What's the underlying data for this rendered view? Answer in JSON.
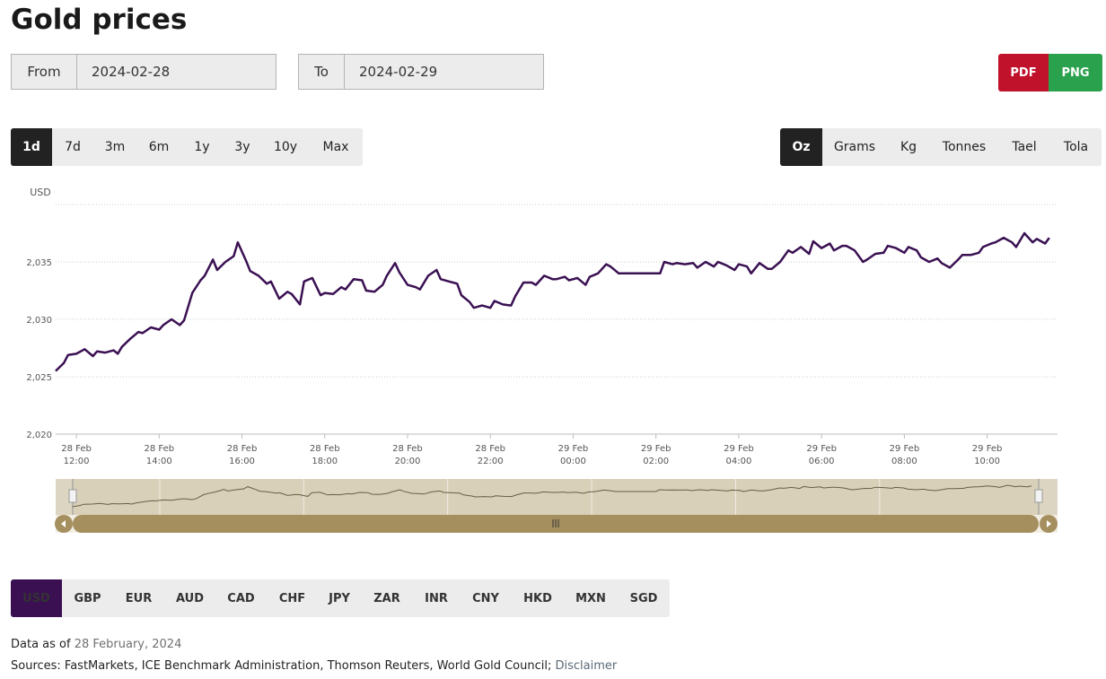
{
  "page": {
    "title": "Gold prices"
  },
  "date_range": {
    "from_label": "From",
    "from_value": "2024-02-28",
    "to_label": "To",
    "to_value": "2024-02-29"
  },
  "export": {
    "pdf_label": "PDF",
    "png_label": "PNG",
    "pdf_color": "#c0122b",
    "png_color": "#2aa14c"
  },
  "periods": [
    {
      "label": "1d",
      "active": true
    },
    {
      "label": "7d"
    },
    {
      "label": "3m"
    },
    {
      "label": "6m"
    },
    {
      "label": "1y"
    },
    {
      "label": "3y"
    },
    {
      "label": "10y"
    },
    {
      "label": "Max"
    }
  ],
  "units": [
    {
      "label": "Oz",
      "active": true
    },
    {
      "label": "Grams"
    },
    {
      "label": "Kg"
    },
    {
      "label": "Tonnes"
    },
    {
      "label": "Tael"
    },
    {
      "label": "Tola"
    }
  ],
  "currencies": [
    {
      "label": "USD",
      "active": true
    },
    {
      "label": "GBP"
    },
    {
      "label": "EUR"
    },
    {
      "label": "AUD"
    },
    {
      "label": "CAD"
    },
    {
      "label": "CHF"
    },
    {
      "label": "JPY"
    },
    {
      "label": "ZAR"
    },
    {
      "label": "INR"
    },
    {
      "label": "CNY"
    },
    {
      "label": "HKD"
    },
    {
      "label": "MXN"
    },
    {
      "label": "SGD"
    }
  ],
  "footer": {
    "asof_prefix": "Data as of ",
    "asof_date": "28 February, 2024",
    "sources": "Sources: FastMarkets, ICE Benchmark Administration, Thomson Reuters, World Gold Council; ",
    "disclaimer": "Disclaimer"
  },
  "chart_data": {
    "type": "line",
    "ylabel": "USD",
    "ylim": [
      2020,
      2040
    ],
    "yticks": [
      {
        "value": 2020,
        "label": "2,020"
      },
      {
        "value": 2025,
        "label": "2,025"
      },
      {
        "value": 2030,
        "label": "2,030"
      },
      {
        "value": 2035,
        "label": "2,035"
      }
    ],
    "xlim": [
      11.5,
      35.7
    ],
    "xticks": [
      {
        "t": 12,
        "l1": "28 Feb",
        "l2": "12:00"
      },
      {
        "t": 14,
        "l1": "28 Feb",
        "l2": "14:00"
      },
      {
        "t": 16,
        "l1": "28 Feb",
        "l2": "16:00"
      },
      {
        "t": 18,
        "l1": "28 Feb",
        "l2": "18:00"
      },
      {
        "t": 20,
        "l1": "28 Feb",
        "l2": "20:00"
      },
      {
        "t": 22,
        "l1": "28 Feb",
        "l2": "22:00"
      },
      {
        "t": 24,
        "l1": "29 Feb",
        "l2": "00:00"
      },
      {
        "t": 26,
        "l1": "29 Feb",
        "l2": "02:00"
      },
      {
        "t": 28,
        "l1": "29 Feb",
        "l2": "04:00"
      },
      {
        "t": 30,
        "l1": "29 Feb",
        "l2": "06:00"
      },
      {
        "t": 32,
        "l1": "29 Feb",
        "l2": "08:00"
      },
      {
        "t": 34,
        "l1": "29 Feb",
        "l2": "10:00"
      }
    ],
    "line_color": "#3a1052",
    "grid": true,
    "series": [
      {
        "points": [
          [
            11.5,
            2025.5
          ],
          [
            11.7,
            2026.2
          ],
          [
            11.8,
            2026.9
          ],
          [
            12.0,
            2027.0
          ],
          [
            12.2,
            2027.4
          ],
          [
            12.4,
            2026.8
          ],
          [
            12.5,
            2027.2
          ],
          [
            12.7,
            2027.1
          ],
          [
            12.9,
            2027.3
          ],
          [
            13.0,
            2027.0
          ],
          [
            13.1,
            2027.6
          ],
          [
            13.3,
            2028.3
          ],
          [
            13.5,
            2028.9
          ],
          [
            13.6,
            2028.8
          ],
          [
            13.8,
            2029.3
          ],
          [
            14.0,
            2029.1
          ],
          [
            14.1,
            2029.5
          ],
          [
            14.3,
            2030.0
          ],
          [
            14.5,
            2029.5
          ],
          [
            14.6,
            2029.9
          ],
          [
            14.8,
            2032.3
          ],
          [
            15.0,
            2033.4
          ],
          [
            15.1,
            2033.8
          ],
          [
            15.3,
            2035.2
          ],
          [
            15.4,
            2034.3
          ],
          [
            15.6,
            2035.0
          ],
          [
            15.8,
            2035.5
          ],
          [
            15.9,
            2036.7
          ],
          [
            16.1,
            2035.1
          ],
          [
            16.2,
            2034.2
          ],
          [
            16.4,
            2033.8
          ],
          [
            16.6,
            2033.1
          ],
          [
            16.7,
            2033.3
          ],
          [
            16.9,
            2031.8
          ],
          [
            17.1,
            2032.4
          ],
          [
            17.2,
            2032.2
          ],
          [
            17.4,
            2031.3
          ],
          [
            17.5,
            2033.3
          ],
          [
            17.7,
            2033.6
          ],
          [
            17.9,
            2032.1
          ],
          [
            18.0,
            2032.3
          ],
          [
            18.2,
            2032.2
          ],
          [
            18.4,
            2032.8
          ],
          [
            18.5,
            2032.6
          ],
          [
            18.7,
            2033.5
          ],
          [
            18.9,
            2033.4
          ],
          [
            19.0,
            2032.5
          ],
          [
            19.2,
            2032.4
          ],
          [
            19.4,
            2033.0
          ],
          [
            19.5,
            2033.8
          ],
          [
            19.7,
            2034.9
          ],
          [
            19.8,
            2034.1
          ],
          [
            20.0,
            2033.0
          ],
          [
            20.2,
            2032.8
          ],
          [
            20.3,
            2032.6
          ],
          [
            20.5,
            2033.8
          ],
          [
            20.7,
            2034.3
          ],
          [
            20.8,
            2033.5
          ],
          [
            21.0,
            2033.3
          ],
          [
            21.2,
            2033.1
          ],
          [
            21.3,
            2032.1
          ],
          [
            21.5,
            2031.5
          ],
          [
            21.6,
            2031.0
          ],
          [
            21.8,
            2031.2
          ],
          [
            22.0,
            2031.0
          ],
          [
            22.1,
            2031.6
          ],
          [
            22.3,
            2031.3
          ],
          [
            22.5,
            2031.2
          ],
          [
            22.6,
            2032.0
          ],
          [
            22.8,
            2033.2
          ],
          [
            23.0,
            2033.2
          ],
          [
            23.1,
            2033.0
          ],
          [
            23.3,
            2033.8
          ],
          [
            23.5,
            2033.5
          ],
          [
            23.6,
            2033.5
          ],
          [
            23.8,
            2033.7
          ],
          [
            23.9,
            2033.4
          ],
          [
            24.1,
            2033.6
          ],
          [
            24.3,
            2033.0
          ],
          [
            24.4,
            2033.7
          ],
          [
            24.6,
            2034.0
          ],
          [
            24.8,
            2034.8
          ],
          [
            24.9,
            2034.6
          ],
          [
            25.1,
            2034.0
          ],
          [
            25.3,
            2034.0
          ],
          [
            26.1,
            2034.0
          ],
          [
            26.2,
            2035.0
          ],
          [
            26.4,
            2034.8
          ],
          [
            26.5,
            2034.9
          ],
          [
            26.7,
            2034.8
          ],
          [
            26.9,
            2034.9
          ],
          [
            27.0,
            2034.5
          ],
          [
            27.2,
            2035.0
          ],
          [
            27.4,
            2034.6
          ],
          [
            27.5,
            2035.0
          ],
          [
            27.7,
            2034.7
          ],
          [
            27.9,
            2034.3
          ],
          [
            28.0,
            2034.8
          ],
          [
            28.2,
            2034.6
          ],
          [
            28.3,
            2034.0
          ],
          [
            28.5,
            2034.9
          ],
          [
            28.7,
            2034.4
          ],
          [
            28.8,
            2034.4
          ],
          [
            29.0,
            2035.0
          ],
          [
            29.2,
            2036.0
          ],
          [
            29.3,
            2035.8
          ],
          [
            29.5,
            2036.3
          ],
          [
            29.7,
            2035.7
          ],
          [
            29.8,
            2036.8
          ],
          [
            30.0,
            2036.2
          ],
          [
            30.2,
            2036.6
          ],
          [
            30.3,
            2036.0
          ],
          [
            30.5,
            2036.4
          ],
          [
            30.6,
            2036.4
          ],
          [
            30.8,
            2036.0
          ],
          [
            31.0,
            2035.0
          ],
          [
            31.1,
            2035.2
          ],
          [
            31.3,
            2035.7
          ],
          [
            31.5,
            2035.8
          ],
          [
            31.6,
            2036.4
          ],
          [
            31.8,
            2036.2
          ],
          [
            32.0,
            2035.8
          ],
          [
            32.1,
            2036.3
          ],
          [
            32.3,
            2036.0
          ],
          [
            32.4,
            2035.4
          ],
          [
            32.6,
            2035.0
          ],
          [
            32.8,
            2035.3
          ],
          [
            32.9,
            2034.9
          ],
          [
            33.1,
            2034.5
          ],
          [
            33.3,
            2035.2
          ],
          [
            33.4,
            2035.6
          ],
          [
            33.6,
            2035.6
          ],
          [
            33.8,
            2035.8
          ],
          [
            33.9,
            2036.3
          ],
          [
            34.1,
            2036.6
          ],
          [
            34.2,
            2036.7
          ],
          [
            34.4,
            2037.1
          ],
          [
            34.6,
            2036.7
          ],
          [
            34.7,
            2036.3
          ],
          [
            34.9,
            2037.5
          ],
          [
            35.1,
            2036.7
          ],
          [
            35.2,
            2037.0
          ],
          [
            35.4,
            2036.6
          ],
          [
            35.5,
            2037.1
          ]
        ]
      }
    ]
  }
}
